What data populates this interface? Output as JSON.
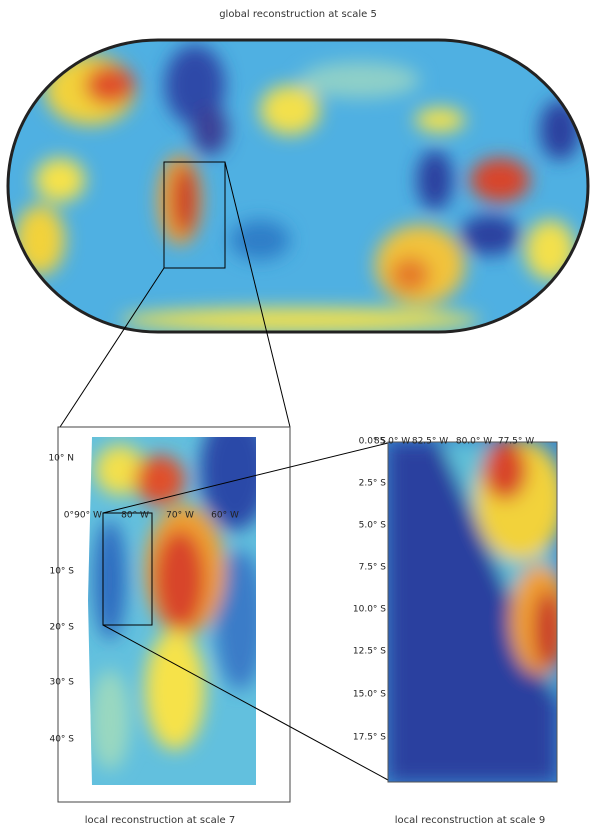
{
  "global": {
    "title": "global reconstruction at scale 5"
  },
  "local_scale_7": {
    "caption": "local reconstruction at scale 7",
    "lat_labels": [
      "10° N",
      "0°",
      "10° S",
      "20° S",
      "30° S",
      "40° S"
    ],
    "lon_labels": [
      "90° W",
      "80° W",
      "70° W",
      "60° W"
    ]
  },
  "local_scale_9": {
    "caption": "local reconstruction at scale 9",
    "lat_labels": [
      "0.0° S",
      "2.5° S",
      "5.0° S",
      "7.5° S",
      "10.0° S",
      "12.5° S",
      "15.0° S",
      "17.5° S"
    ],
    "lon_labels": [
      "85.0° W",
      "82.5° W",
      "80.0° W",
      "77.5° W"
    ]
  }
}
